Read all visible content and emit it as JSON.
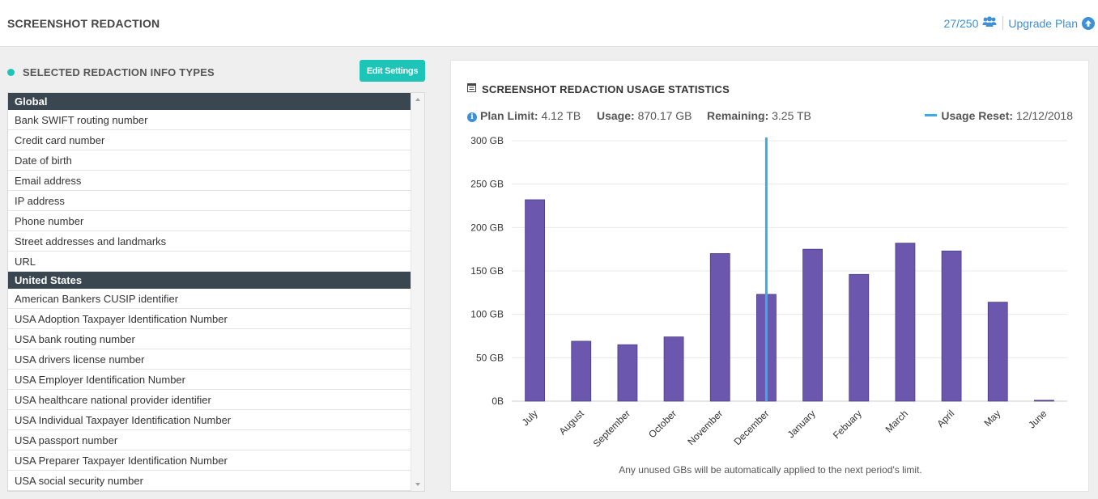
{
  "header": {
    "title": "SCREENSHOT REDACTION",
    "quota": "27/250",
    "upgrade_label": "Upgrade Plan"
  },
  "left_panel": {
    "title": "SELECTED REDACTION INFO TYPES",
    "edit_button": "Edit Settings",
    "groups": [
      {
        "name": "Global",
        "items": [
          "Bank SWIFT routing number",
          "Credit card number",
          "Date of birth",
          "Email address",
          "IP address",
          "Phone number",
          "Street addresses and landmarks",
          "URL"
        ]
      },
      {
        "name": "United States",
        "items": [
          "American Bankers CUSIP identifier",
          "USA Adoption Taxpayer Identification Number",
          "USA bank routing number",
          "USA drivers license number",
          "USA Employer Identification Number",
          "USA healthcare national provider identifier",
          "USA Individual Taxpayer Identification Number",
          "USA passport number",
          "USA Preparer Taxpayer Identification Number",
          "USA social security number"
        ]
      }
    ]
  },
  "usage_panel": {
    "title": "SCREENSHOT REDACTION USAGE STATISTICS",
    "plan_limit_label": "Plan Limit:",
    "plan_limit_value": "4.12 TB",
    "usage_label": "Usage:",
    "usage_value": "870.17 GB",
    "remaining_label": "Remaining:",
    "remaining_value": "3.25 TB",
    "reset_label": "Usage Reset:",
    "reset_value": "12/12/2018",
    "footnote": "Any unused GBs will be automatically applied to the next period's limit."
  },
  "colors": {
    "accent": "#1dc4b8",
    "link": "#3d8fd6",
    "bar": "#6b57ad",
    "reset_line": "#3fa9e8",
    "group_header": "#3a4650"
  },
  "chart_data": {
    "type": "bar",
    "categories": [
      "July",
      "August",
      "September",
      "October",
      "November",
      "December",
      "January",
      "Febuary",
      "March",
      "April",
      "May",
      "June"
    ],
    "values": [
      232,
      69,
      65,
      74,
      170,
      123,
      175,
      146,
      182,
      173,
      114,
      1
    ],
    "ylim": [
      0,
      300
    ],
    "yticks": [
      0,
      50,
      100,
      150,
      200,
      250,
      300
    ],
    "ytick_labels": [
      "0B",
      "50 GB",
      "100 GB",
      "150 GB",
      "200 GB",
      "250 GB",
      "300 GB"
    ],
    "reset_marker_category": "December",
    "grid": true,
    "legend": "none"
  }
}
